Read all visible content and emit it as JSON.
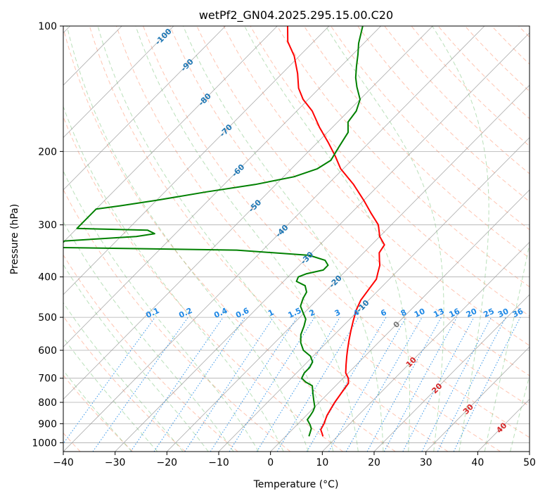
{
  "chart_data": {
    "type": "line",
    "subtype": "skew-t log-p",
    "title": "wetPf2_GN04.2025.295.15.00.C20",
    "xlabel": "Temperature (°C)",
    "ylabel": "Pressure (hPa)",
    "xlim": [
      -40,
      50
    ],
    "ylim": [
      1050,
      100
    ],
    "y_scale": "log",
    "grid": true,
    "x_ticks": [
      "-40",
      "-30",
      "-20",
      "-10",
      "0",
      "10",
      "20",
      "30",
      "40",
      "50"
    ],
    "y_ticks": [
      "100",
      "200",
      "300",
      "400",
      "500",
      "600",
      "700",
      "800",
      "900",
      "1000"
    ],
    "series": [
      {
        "name": "",
        "role": "temperature",
        "color": "#ff0000",
        "points": [
          [
            7.2,
            965
          ],
          [
            6.5,
            950
          ],
          [
            5.5,
            930
          ],
          [
            5,
            900
          ],
          [
            4.5,
            880
          ],
          [
            4,
            860
          ],
          [
            3.5,
            830
          ],
          [
            3,
            800
          ],
          [
            2.5,
            760
          ],
          [
            2,
            720
          ],
          [
            1,
            700
          ],
          [
            -0.5,
            680
          ],
          [
            -2,
            650
          ],
          [
            -3.5,
            620
          ],
          [
            -4.5,
            600
          ],
          [
            -6,
            570
          ],
          [
            -7.5,
            540
          ],
          [
            -9,
            510
          ],
          [
            -10.5,
            480
          ],
          [
            -11.5,
            455
          ],
          [
            -12,
            430
          ],
          [
            -12.5,
            405
          ],
          [
            -13.5,
            390
          ],
          [
            -14.5,
            375
          ],
          [
            -15.5,
            365
          ],
          [
            -16,
            360
          ],
          [
            -17,
            350
          ],
          [
            -17.5,
            335
          ],
          [
            -20,
            320
          ],
          [
            -22.5,
            300
          ],
          [
            -26,
            282
          ],
          [
            -30,
            262
          ],
          [
            -35,
            240
          ],
          [
            -40.5,
            220
          ],
          [
            -44,
            205
          ],
          [
            -48,
            190
          ],
          [
            -52.5,
            175
          ],
          [
            -57,
            160
          ],
          [
            -61,
            150
          ],
          [
            -64,
            141
          ],
          [
            -67,
            130
          ],
          [
            -71,
            118
          ],
          [
            -75,
            109
          ],
          [
            -78,
            100
          ]
        ]
      },
      {
        "name": "",
        "role": "dewpoint",
        "color": "#008000",
        "points": [
          [
            4.5,
            965
          ],
          [
            4,
            945
          ],
          [
            3.5,
            925
          ],
          [
            2.5,
            905
          ],
          [
            1,
            880
          ],
          [
            0.8,
            860
          ],
          [
            0.5,
            840
          ],
          [
            0,
            820
          ],
          [
            -1.5,
            790
          ],
          [
            -3,
            760
          ],
          [
            -4.5,
            730
          ],
          [
            -6.5,
            715
          ],
          [
            -8,
            700
          ],
          [
            -8.5,
            680
          ],
          [
            -8.5,
            660
          ],
          [
            -9,
            640
          ],
          [
            -10.5,
            620
          ],
          [
            -13,
            600
          ],
          [
            -15,
            575
          ],
          [
            -16.5,
            550
          ],
          [
            -17.5,
            525
          ],
          [
            -18.5,
            505
          ],
          [
            -20,
            490
          ],
          [
            -22,
            470
          ],
          [
            -23,
            450
          ],
          [
            -23.5,
            435
          ],
          [
            -25,
            420
          ],
          [
            -27.5,
            410
          ],
          [
            -28,
            400
          ],
          [
            -27,
            393
          ],
          [
            -24.5,
            385
          ],
          [
            -24.5,
            375
          ],
          [
            -26,
            365
          ],
          [
            -30,
            355
          ],
          [
            -45,
            345
          ],
          [
            -80,
            340
          ],
          [
            -80,
            328
          ],
          [
            -67,
            320
          ],
          [
            -64,
            315
          ],
          [
            -66,
            309
          ],
          [
            -80,
            306
          ],
          [
            -80,
            275
          ],
          [
            -76,
            270
          ],
          [
            -70,
            262
          ],
          [
            -62,
            250
          ],
          [
            -54,
            240
          ],
          [
            -48,
            230
          ],
          [
            -45,
            220
          ],
          [
            -44,
            210
          ],
          [
            -45,
            195
          ],
          [
            -46,
            180
          ],
          [
            -48,
            170
          ],
          [
            -48.5,
            160
          ],
          [
            -50,
            150
          ],
          [
            -53,
            140
          ],
          [
            -55,
            133
          ],
          [
            -57,
            125
          ],
          [
            -59,
            117
          ],
          [
            -61,
            110
          ],
          [
            -63.5,
            100
          ]
        ]
      }
    ],
    "reference_lines": {
      "dry_adiabats_color": "#ff8c66",
      "moist_adiabats_color": "#66bb66",
      "mixing_ratio_color": "#1e88e5",
      "isotherm_color": "#888888"
    },
    "isotherm_labels_cold": [
      {
        "text": "-100",
        "t": -100,
        "p": 106
      },
      {
        "text": "-90",
        "t": -90,
        "p": 124
      },
      {
        "text": "-80",
        "t": -80,
        "p": 150
      },
      {
        "text": "-70",
        "t": -70,
        "p": 178
      },
      {
        "text": "-60",
        "t": -60,
        "p": 222
      },
      {
        "text": "-50",
        "t": -50,
        "p": 270
      },
      {
        "text": "-40",
        "t": -40,
        "p": 310
      },
      {
        "text": "-30",
        "t": -30,
        "p": 360
      },
      {
        "text": "-20",
        "t": -20,
        "p": 410
      },
      {
        "text": "-10",
        "t": -10,
        "p": 470
      }
    ],
    "isotherm_labels_warm": [
      {
        "text": "0",
        "t": 0,
        "p": 520
      },
      {
        "text": "10",
        "t": 10,
        "p": 640
      },
      {
        "text": "20",
        "t": 20,
        "p": 740
      },
      {
        "text": "30",
        "t": 30,
        "p": 830
      },
      {
        "text": "40",
        "t": 40,
        "p": 920
      }
    ],
    "mixing_ratio_labels": [
      "0.1",
      "0.2",
      "0.4",
      "0.6",
      "1",
      "1.5",
      "2",
      "3",
      "4",
      "6",
      "8",
      "10",
      "13",
      "16",
      "20",
      "25",
      "30",
      "36"
    ]
  }
}
